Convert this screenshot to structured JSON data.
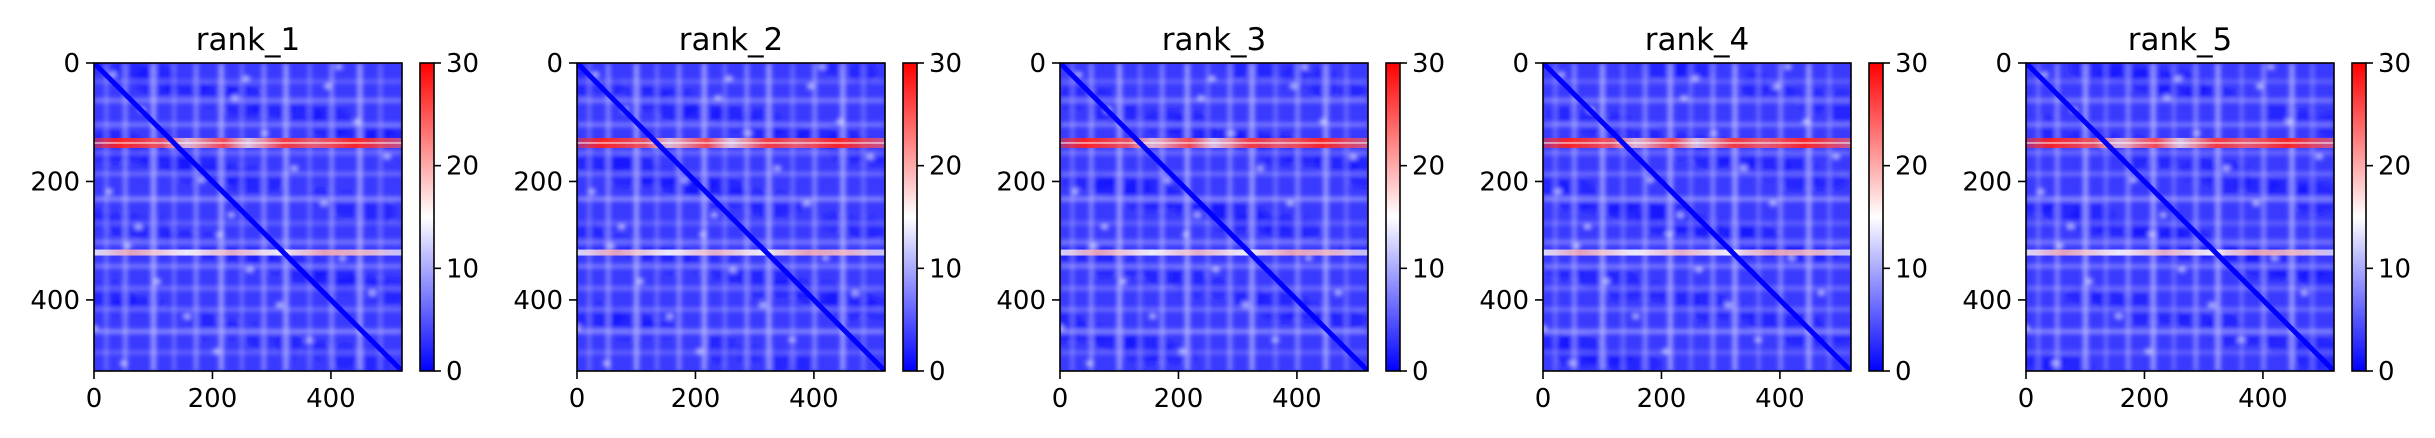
{
  "chart_data": [
    {
      "type": "heatmap",
      "title": "rank_1",
      "xlim": [
        0,
        520
      ],
      "ylim": [
        520,
        0
      ],
      "xticks": [
        0,
        200,
        400
      ],
      "yticks": [
        0,
        200,
        400
      ],
      "colorbar": {
        "min": 0,
        "max": 30,
        "ticks": [
          0,
          10,
          20,
          30
        ],
        "colormap": [
          "#0000ff",
          "#ffffff",
          "#ff0000"
        ]
      },
      "hot_rows": [
        135,
        320
      ],
      "diagonal_low": true
    },
    {
      "type": "heatmap",
      "title": "rank_2",
      "xlim": [
        0,
        520
      ],
      "ylim": [
        520,
        0
      ],
      "xticks": [
        0,
        200,
        400
      ],
      "yticks": [
        0,
        200,
        400
      ],
      "colorbar": {
        "min": 0,
        "max": 30,
        "ticks": [
          0,
          10,
          20,
          30
        ],
        "colormap": [
          "#0000ff",
          "#ffffff",
          "#ff0000"
        ]
      },
      "hot_rows": [
        135,
        320
      ],
      "diagonal_low": true
    },
    {
      "type": "heatmap",
      "title": "rank_3",
      "xlim": [
        0,
        520
      ],
      "ylim": [
        520,
        0
      ],
      "xticks": [
        0,
        200,
        400
      ],
      "yticks": [
        0,
        200,
        400
      ],
      "colorbar": {
        "min": 0,
        "max": 30,
        "ticks": [
          0,
          10,
          20,
          30
        ],
        "colormap": [
          "#0000ff",
          "#ffffff",
          "#ff0000"
        ]
      },
      "hot_rows": [
        135,
        320
      ],
      "diagonal_low": true
    },
    {
      "type": "heatmap",
      "title": "rank_4",
      "xlim": [
        0,
        520
      ],
      "ylim": [
        520,
        0
      ],
      "xticks": [
        0,
        200,
        400
      ],
      "yticks": [
        0,
        200,
        400
      ],
      "colorbar": {
        "min": 0,
        "max": 30,
        "ticks": [
          0,
          10,
          20,
          30
        ],
        "colormap": [
          "#0000ff",
          "#ffffff",
          "#ff0000"
        ]
      },
      "hot_rows": [
        135,
        320
      ],
      "diagonal_low": true
    },
    {
      "type": "heatmap",
      "title": "rank_5",
      "xlim": [
        0,
        520
      ],
      "ylim": [
        520,
        0
      ],
      "xticks": [
        0,
        200,
        400
      ],
      "yticks": [
        0,
        200,
        400
      ],
      "colorbar": {
        "min": 0,
        "max": 30,
        "ticks": [
          0,
          10,
          20,
          30
        ],
        "colormap": [
          "#0000ff",
          "#ffffff",
          "#ff0000"
        ]
      },
      "hot_rows": [
        135,
        320
      ],
      "diagonal_low": true
    }
  ]
}
